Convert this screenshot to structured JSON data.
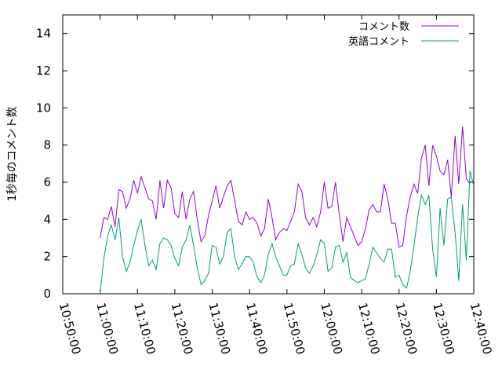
{
  "chart_data": {
    "type": "line",
    "title": "",
    "xlabel": "",
    "ylabel": "1秒毎のコメント数",
    "xlim": [
      "10:50:00",
      "12:40:00"
    ],
    "ylim": [
      0,
      15
    ],
    "x_ticks": [
      "10:50:00",
      "11:00:00",
      "11:10:00",
      "11:20:00",
      "11:30:00",
      "11:40:00",
      "11:50:00",
      "12:00:00",
      "12:10:00",
      "12:20:00",
      "12:30:00",
      "12:40:00"
    ],
    "y_ticks": [
      0,
      2,
      4,
      6,
      8,
      10,
      12,
      14
    ],
    "grid": false,
    "legend_position": "top-right",
    "x_start": "11:00:00",
    "x_step_seconds": 60,
    "series": [
      {
        "name": "コメント数",
        "color": "#9400d3",
        "values": [
          3.0,
          4.1,
          4.0,
          4.7,
          3.6,
          5.6,
          5.5,
          4.6,
          5.1,
          6.1,
          5.4,
          6.3,
          5.7,
          5.1,
          5.0,
          4.0,
          6.1,
          4.6,
          6.1,
          5.7,
          4.3,
          4.1,
          5.5,
          4.0,
          5.1,
          5.5,
          4.0,
          2.8,
          3.1,
          4.2,
          5.0,
          5.8,
          4.6,
          5.2,
          5.8,
          6.1,
          5.0,
          3.9,
          3.7,
          4.4,
          4.0,
          4.1,
          3.8,
          3.1,
          3.5,
          5.1,
          4.1,
          2.9,
          3.3,
          3.5,
          3.4,
          3.9,
          4.4,
          5.9,
          5.5,
          4.1,
          3.7,
          4.1,
          3.6,
          4.4,
          6.0,
          4.6,
          4.7,
          6.0,
          4.3,
          2.8,
          4.1,
          3.6,
          3.1,
          2.6,
          2.8,
          3.5,
          4.5,
          4.8,
          4.4,
          4.4,
          5.9,
          5.1,
          3.8,
          3.8,
          2.5,
          2.6,
          4.2,
          5.2,
          5.9,
          5.4,
          7.3,
          8.0,
          5.8,
          8.0,
          7.4,
          6.6,
          6.4,
          7.2,
          5.2,
          8.5,
          5.9,
          9.0,
          6.2,
          5.9
        ]
      },
      {
        "name": "英語コメント",
        "color": "#009e73",
        "values": [
          0.0,
          1.9,
          3.1,
          3.7,
          2.9,
          4.1,
          2.0,
          1.2,
          1.7,
          2.6,
          3.4,
          4.0,
          2.6,
          1.5,
          1.8,
          1.3,
          2.7,
          3.0,
          2.9,
          2.6,
          1.9,
          1.5,
          2.5,
          2.9,
          3.7,
          2.6,
          1.4,
          0.5,
          0.7,
          1.1,
          2.6,
          2.5,
          1.6,
          2.0,
          3.3,
          3.5,
          2.0,
          1.3,
          1.6,
          2.0,
          2.0,
          1.7,
          0.9,
          0.6,
          1.0,
          2.1,
          2.7,
          2.0,
          1.5,
          1.0,
          1.0,
          1.5,
          1.6,
          2.7,
          2.1,
          1.4,
          1.1,
          1.5,
          2.1,
          2.9,
          2.7,
          1.2,
          1.4,
          2.5,
          2.6,
          1.7,
          2.2,
          0.9,
          0.7,
          0.6,
          0.7,
          0.8,
          1.6,
          2.5,
          2.2,
          1.9,
          1.7,
          2.4,
          2.4,
          0.9,
          1.0,
          0.5,
          0.3,
          1.2,
          2.6,
          4.1,
          5.3,
          4.8,
          5.3,
          2.4,
          0.9,
          4.6,
          2.6,
          5.1,
          5.2,
          3.3,
          0.7,
          4.8,
          1.8,
          6.6,
          5.8
        ]
      }
    ]
  }
}
